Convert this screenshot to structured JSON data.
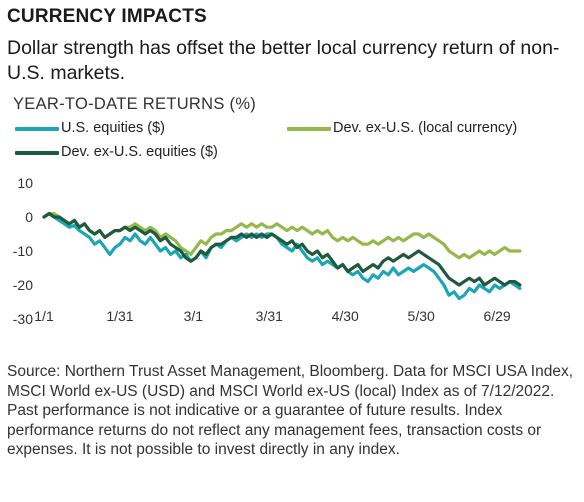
{
  "header": {
    "title": "CURRENCY IMPACTS",
    "subtitle": "Dollar strength has offset the better local currency return of non-U.S. markets."
  },
  "chart_data": {
    "type": "line",
    "title": "YEAR-TO-DATE RETURNS (%)",
    "xlabel": "",
    "ylabel": "",
    "ylim": [
      -30,
      10
    ],
    "y_ticks": [
      10,
      0,
      -10,
      -20,
      -30
    ],
    "x_ticks": [
      {
        "label": "1/1",
        "day": 0
      },
      {
        "label": "1/31",
        "day": 30
      },
      {
        "label": "3/1",
        "day": 59
      },
      {
        "label": "3/31",
        "day": 89
      },
      {
        "label": "4/30",
        "day": 119
      },
      {
        "label": "5/30",
        "day": 149
      },
      {
        "label": "6/29",
        "day": 179
      }
    ],
    "xlim_days": [
      0,
      192
    ],
    "grid": false,
    "legend_placement": "top",
    "series": [
      {
        "name": "U.S. equities ($)",
        "color": "#1aa6b7",
        "points": [
          [
            0,
            0
          ],
          [
            2,
            1
          ],
          [
            4,
            0
          ],
          [
            6,
            -1
          ],
          [
            8,
            -2
          ],
          [
            10,
            -3
          ],
          [
            12,
            -2.5
          ],
          [
            14,
            -4
          ],
          [
            16,
            -5
          ],
          [
            18,
            -6
          ],
          [
            20,
            -8
          ],
          [
            22,
            -7
          ],
          [
            24,
            -9
          ],
          [
            26,
            -11
          ],
          [
            28,
            -9
          ],
          [
            30,
            -8
          ],
          [
            32,
            -6
          ],
          [
            34,
            -7
          ],
          [
            36,
            -5
          ],
          [
            38,
            -7
          ],
          [
            40,
            -8
          ],
          [
            42,
            -6
          ],
          [
            44,
            -8
          ],
          [
            46,
            -10
          ],
          [
            48,
            -9
          ],
          [
            50,
            -11
          ],
          [
            52,
            -10
          ],
          [
            54,
            -12
          ],
          [
            56,
            -11
          ],
          [
            58,
            -13
          ],
          [
            60,
            -12
          ],
          [
            62,
            -10
          ],
          [
            64,
            -12
          ],
          [
            66,
            -9
          ],
          [
            68,
            -8
          ],
          [
            70,
            -9
          ],
          [
            72,
            -7
          ],
          [
            74,
            -6
          ],
          [
            76,
            -7
          ],
          [
            78,
            -6
          ],
          [
            80,
            -5
          ],
          [
            82,
            -6
          ],
          [
            84,
            -5
          ],
          [
            86,
            -6
          ],
          [
            88,
            -5
          ],
          [
            90,
            -5
          ],
          [
            92,
            -6
          ],
          [
            94,
            -8
          ],
          [
            96,
            -9
          ],
          [
            98,
            -10
          ],
          [
            100,
            -8
          ],
          [
            102,
            -10
          ],
          [
            104,
            -12
          ],
          [
            106,
            -13
          ],
          [
            108,
            -12
          ],
          [
            110,
            -14
          ],
          [
            112,
            -13
          ],
          [
            114,
            -14
          ],
          [
            116,
            -15
          ],
          [
            118,
            -14
          ],
          [
            120,
            -16
          ],
          [
            122,
            -17
          ],
          [
            124,
            -16
          ],
          [
            126,
            -18
          ],
          [
            128,
            -19
          ],
          [
            130,
            -17
          ],
          [
            132,
            -18
          ],
          [
            134,
            -16
          ],
          [
            136,
            -17
          ],
          [
            138,
            -15
          ],
          [
            140,
            -17
          ],
          [
            142,
            -16
          ],
          [
            144,
            -15
          ],
          [
            146,
            -16
          ],
          [
            148,
            -15
          ],
          [
            150,
            -14
          ],
          [
            152,
            -15
          ],
          [
            154,
            -16
          ],
          [
            156,
            -18
          ],
          [
            158,
            -20
          ],
          [
            160,
            -23
          ],
          [
            162,
            -22
          ],
          [
            164,
            -24
          ],
          [
            166,
            -23
          ],
          [
            168,
            -21
          ],
          [
            170,
            -22
          ],
          [
            172,
            -20
          ],
          [
            174,
            -21
          ],
          [
            176,
            -22
          ],
          [
            178,
            -20
          ],
          [
            180,
            -21
          ],
          [
            182,
            -20
          ],
          [
            184,
            -19
          ],
          [
            186,
            -20
          ],
          [
            188,
            -21
          ]
        ]
      },
      {
        "name": "Dev. ex-U.S. (local currency)",
        "color": "#94b84a",
        "points": [
          [
            0,
            0
          ],
          [
            2,
            1
          ],
          [
            4,
            1
          ],
          [
            6,
            0
          ],
          [
            8,
            -1
          ],
          [
            10,
            -2
          ],
          [
            12,
            -1
          ],
          [
            14,
            -3
          ],
          [
            16,
            -2
          ],
          [
            18,
            -4
          ],
          [
            20,
            -5
          ],
          [
            22,
            -4
          ],
          [
            24,
            -6
          ],
          [
            26,
            -5
          ],
          [
            28,
            -4
          ],
          [
            30,
            -4
          ],
          [
            32,
            -3
          ],
          [
            34,
            -3
          ],
          [
            36,
            -2
          ],
          [
            38,
            -3
          ],
          [
            40,
            -4
          ],
          [
            42,
            -3
          ],
          [
            44,
            -4
          ],
          [
            46,
            -6
          ],
          [
            48,
            -5
          ],
          [
            50,
            -6
          ],
          [
            52,
            -7
          ],
          [
            54,
            -9
          ],
          [
            56,
            -10
          ],
          [
            58,
            -11
          ],
          [
            60,
            -9
          ],
          [
            62,
            -7
          ],
          [
            64,
            -8
          ],
          [
            66,
            -6
          ],
          [
            68,
            -5
          ],
          [
            70,
            -5
          ],
          [
            72,
            -4
          ],
          [
            74,
            -4
          ],
          [
            76,
            -3
          ],
          [
            78,
            -2
          ],
          [
            80,
            -3
          ],
          [
            82,
            -2
          ],
          [
            84,
            -3
          ],
          [
            86,
            -2
          ],
          [
            88,
            -3
          ],
          [
            90,
            -3
          ],
          [
            92,
            -2
          ],
          [
            94,
            -3
          ],
          [
            96,
            -4
          ],
          [
            98,
            -3
          ],
          [
            100,
            -4
          ],
          [
            102,
            -3
          ],
          [
            104,
            -4
          ],
          [
            106,
            -5
          ],
          [
            108,
            -4
          ],
          [
            110,
            -5
          ],
          [
            112,
            -4
          ],
          [
            114,
            -6
          ],
          [
            116,
            -7
          ],
          [
            118,
            -6
          ],
          [
            120,
            -7
          ],
          [
            122,
            -6
          ],
          [
            124,
            -7
          ],
          [
            126,
            -8
          ],
          [
            128,
            -8
          ],
          [
            130,
            -7
          ],
          [
            132,
            -8
          ],
          [
            134,
            -7
          ],
          [
            136,
            -6
          ],
          [
            138,
            -7
          ],
          [
            140,
            -6
          ],
          [
            142,
            -7
          ],
          [
            144,
            -6
          ],
          [
            146,
            -5
          ],
          [
            148,
            -5
          ],
          [
            150,
            -6
          ],
          [
            152,
            -5
          ],
          [
            154,
            -6
          ],
          [
            156,
            -7
          ],
          [
            158,
            -8
          ],
          [
            160,
            -10
          ],
          [
            162,
            -11
          ],
          [
            164,
            -12
          ],
          [
            166,
            -11
          ],
          [
            168,
            -12
          ],
          [
            170,
            -11
          ],
          [
            172,
            -10
          ],
          [
            174,
            -11
          ],
          [
            176,
            -10
          ],
          [
            178,
            -11
          ],
          [
            180,
            -10
          ],
          [
            182,
            -9
          ],
          [
            184,
            -10
          ],
          [
            186,
            -10
          ],
          [
            188,
            -10
          ]
        ]
      },
      {
        "name": "Dev. ex-U.S. equities ($)",
        "color": "#1e5a3c",
        "points": [
          [
            0,
            0
          ],
          [
            2,
            1
          ],
          [
            4,
            0
          ],
          [
            6,
            0
          ],
          [
            8,
            -1
          ],
          [
            10,
            -2
          ],
          [
            12,
            -1
          ],
          [
            14,
            -3
          ],
          [
            16,
            -2
          ],
          [
            18,
            -4
          ],
          [
            20,
            -5
          ],
          [
            22,
            -4
          ],
          [
            24,
            -6
          ],
          [
            26,
            -5
          ],
          [
            28,
            -4
          ],
          [
            30,
            -4
          ],
          [
            32,
            -3
          ],
          [
            34,
            -4
          ],
          [
            36,
            -3
          ],
          [
            38,
            -4
          ],
          [
            40,
            -5
          ],
          [
            42,
            -4
          ],
          [
            44,
            -5
          ],
          [
            46,
            -7
          ],
          [
            48,
            -6
          ],
          [
            50,
            -8
          ],
          [
            52,
            -9
          ],
          [
            54,
            -10
          ],
          [
            56,
            -12
          ],
          [
            58,
            -13
          ],
          [
            60,
            -12
          ],
          [
            62,
            -10
          ],
          [
            64,
            -11
          ],
          [
            66,
            -9
          ],
          [
            68,
            -8
          ],
          [
            70,
            -8
          ],
          [
            72,
            -7
          ],
          [
            74,
            -6
          ],
          [
            76,
            -6
          ],
          [
            78,
            -5
          ],
          [
            80,
            -6
          ],
          [
            82,
            -5
          ],
          [
            84,
            -6
          ],
          [
            86,
            -5
          ],
          [
            88,
            -6
          ],
          [
            90,
            -5
          ],
          [
            92,
            -6
          ],
          [
            94,
            -7
          ],
          [
            96,
            -8
          ],
          [
            98,
            -7
          ],
          [
            100,
            -9
          ],
          [
            102,
            -8
          ],
          [
            104,
            -10
          ],
          [
            106,
            -11
          ],
          [
            108,
            -10
          ],
          [
            110,
            -12
          ],
          [
            112,
            -11
          ],
          [
            114,
            -13
          ],
          [
            116,
            -15
          ],
          [
            118,
            -14
          ],
          [
            120,
            -16
          ],
          [
            122,
            -15
          ],
          [
            124,
            -14
          ],
          [
            126,
            -16
          ],
          [
            128,
            -15
          ],
          [
            130,
            -14
          ],
          [
            132,
            -15
          ],
          [
            134,
            -13
          ],
          [
            136,
            -12
          ],
          [
            138,
            -13
          ],
          [
            140,
            -12
          ],
          [
            142,
            -11
          ],
          [
            144,
            -12
          ],
          [
            146,
            -11
          ],
          [
            148,
            -10
          ],
          [
            150,
            -11
          ],
          [
            152,
            -12
          ],
          [
            154,
            -13
          ],
          [
            156,
            -14
          ],
          [
            158,
            -16
          ],
          [
            160,
            -18
          ],
          [
            162,
            -19
          ],
          [
            164,
            -20
          ],
          [
            166,
            -19
          ],
          [
            168,
            -18
          ],
          [
            170,
            -19
          ],
          [
            172,
            -18
          ],
          [
            174,
            -20
          ],
          [
            176,
            -19
          ],
          [
            178,
            -18
          ],
          [
            180,
            -19
          ],
          [
            182,
            -20
          ],
          [
            184,
            -19
          ],
          [
            186,
            -19
          ],
          [
            188,
            -20
          ]
        ]
      }
    ]
  },
  "footer": {
    "source": "Source: Northern Trust Asset Management, Bloomberg. Data for MSCI USA Index, MSCI World ex-US (USD) and MSCI World ex-US (local) Index as of 7/12/2022. Past performance is not indicative or a guarantee of future results. Index performance returns do not reflect any management fees, transaction costs or expenses. It is not possible to invest directly in any index."
  }
}
